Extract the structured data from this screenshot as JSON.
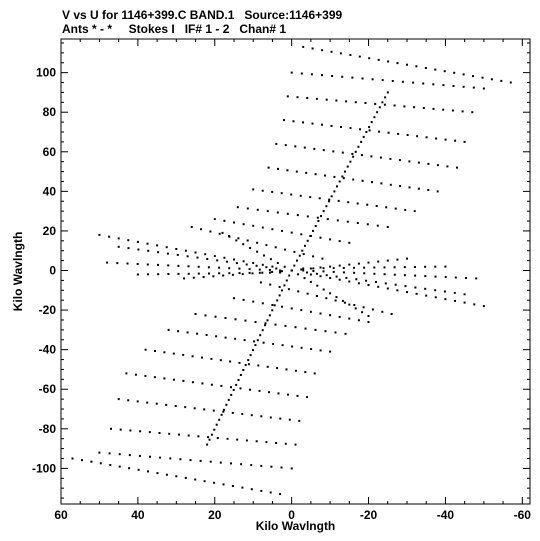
{
  "chart_data": {
    "type": "scatter",
    "title": "V vs U for 1146+399.C BAND.1   Source:1146+399",
    "subtitle": "Ants * - *     Stokes I   IF# 1 - 2   Chan# 1",
    "xlabel": "Kilo Wavlngth",
    "ylabel": "Kilo Wavlngth",
    "xlim": [
      60,
      -62
    ],
    "ylim": [
      -118,
      117
    ],
    "x_ticks": [
      60,
      40,
      20,
      0,
      -20,
      -40,
      -60
    ],
    "y_ticks": [
      100,
      80,
      60,
      40,
      20,
      0,
      -20,
      -40,
      -60,
      -80,
      -100
    ],
    "x_tick_labels": [
      "60",
      "40",
      "20",
      "0",
      "-20",
      "-40",
      "-60"
    ],
    "y_tick_labels": [
      "100",
      "80",
      "60",
      "40",
      "20",
      "0",
      "-20",
      "-40",
      "-60",
      "-80",
      "-100"
    ],
    "grid": false,
    "marker_color": "#000000",
    "series": [
      {
        "tracks": [
          {
            "from": [
              0,
              0
            ],
            "to": [
              -25,
              90
            ]
          },
          {
            "from": [
              0,
              0
            ],
            "to": [
              22,
              -88
            ]
          },
          {
            "from": [
              0,
              0
            ],
            "to": [
              18,
              19
            ]
          },
          {
            "from": [
              0,
              0
            ],
            "to": [
              -20,
              -23
            ]
          },
          {
            "from": [
              0,
              0
            ],
            "to": [
              -30,
              6
            ]
          },
          {
            "from": [
              0,
              0
            ],
            "to": [
              28,
              -4
            ]
          },
          {
            "from": [
              -3,
              113
            ],
            "to": [
              -57,
              95
            ]
          },
          {
            "from": [
              0,
              100
            ],
            "to": [
              -50,
              92
            ]
          },
          {
            "from": [
              1,
              88
            ],
            "to": [
              -47,
              80
            ]
          },
          {
            "from": [
              2,
              76
            ],
            "to": [
              -45,
              65
            ]
          },
          {
            "from": [
              4,
              64
            ],
            "to": [
              -43,
              52
            ]
          },
          {
            "from": [
              6,
              52
            ],
            "to": [
              -38,
              40
            ]
          },
          {
            "from": [
              10,
              41
            ],
            "to": [
              -32,
              30
            ]
          },
          {
            "from": [
              14,
              32
            ],
            "to": [
              -25,
              22
            ]
          },
          {
            "from": [
              20,
              26
            ],
            "to": [
              -15,
              14
            ]
          },
          {
            "from": [
              26,
              22
            ],
            "to": [
              -8,
              6
            ]
          },
          {
            "from": [
              3,
              -113
            ],
            "to": [
              57,
              -95
            ]
          },
          {
            "from": [
              0,
              -100
            ],
            "to": [
              50,
              -92
            ]
          },
          {
            "from": [
              -1,
              -88
            ],
            "to": [
              47,
              -80
            ]
          },
          {
            "from": [
              -2,
              -76
            ],
            "to": [
              45,
              -65
            ]
          },
          {
            "from": [
              -4,
              -64
            ],
            "to": [
              43,
              -52
            ]
          },
          {
            "from": [
              -6,
              -52
            ],
            "to": [
              38,
              -40
            ]
          },
          {
            "from": [
              -10,
              -41
            ],
            "to": [
              32,
              -30
            ]
          },
          {
            "from": [
              -14,
              -32
            ],
            "to": [
              25,
              -22
            ]
          },
          {
            "from": [
              -20,
              -26
            ],
            "to": [
              15,
              -14
            ]
          },
          {
            "from": [
              -26,
              -22
            ],
            "to": [
              8,
              -6
            ]
          },
          {
            "from": [
              50,
              18
            ],
            "to": [
              5,
              2
            ]
          },
          {
            "from": [
              45,
              12
            ],
            "to": [
              4,
              1
            ]
          },
          {
            "from": [
              48,
              4
            ],
            "to": [
              3,
              0
            ]
          },
          {
            "from": [
              40,
              -2
            ],
            "to": [
              3,
              -1
            ]
          },
          {
            "from": [
              -50,
              -18
            ],
            "to": [
              -5,
              -2
            ]
          },
          {
            "from": [
              -45,
              -12
            ],
            "to": [
              -4,
              -1
            ]
          },
          {
            "from": [
              -48,
              -4
            ],
            "to": [
              -3,
              0
            ]
          },
          {
            "from": [
              -40,
              2
            ],
            "to": [
              -3,
              1
            ]
          }
        ]
      }
    ]
  }
}
